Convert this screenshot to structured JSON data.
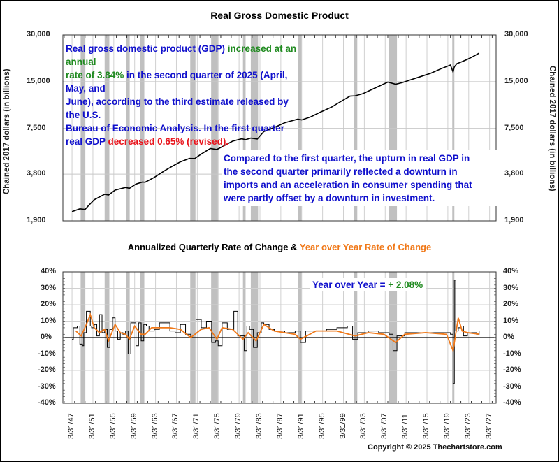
{
  "chart_data": [
    {
      "type": "line",
      "title": "Real Gross Domestic Product",
      "ylabel": "Chained 2017 dollars (in billions)",
      "yscale": "log",
      "ylim": [
        1900,
        30000
      ],
      "yticks": [
        "30,000",
        "15,000",
        "7,500",
        "3,800",
        "1,900"
      ],
      "ytick_values": [
        30000,
        15000,
        7500,
        3800,
        1900
      ],
      "grid": true,
      "series": [
        {
          "name": "Real GDP",
          "color": "#000000",
          "x": [
            1947.25,
            1948.75,
            1949.75,
            1950.5,
            1951.5,
            1953.5,
            1954.25,
            1955.5,
            1957.5,
            1958.25,
            1959.5,
            1960.75,
            1961.25,
            1963,
            1965,
            1966.5,
            1968,
            1969.75,
            1970.75,
            1972,
            1973.75,
            1975,
            1976.5,
            1978,
            1979.75,
            1980.5,
            1981.5,
            1982.75,
            1984,
            1986,
            1988,
            1990.5,
            1991.25,
            1993,
            1995,
            1997,
            1999,
            2000.5,
            2001.5,
            2003,
            2005,
            2007.75,
            2009.25,
            2010.5,
            2012,
            2014,
            2016,
            2018,
            2019.75,
            2020.25,
            2020.5,
            2021,
            2022,
            2023,
            2024,
            2025.25
          ],
          "values": [
            2180,
            2270,
            2250,
            2400,
            2600,
            2820,
            2790,
            3000,
            3120,
            3080,
            3280,
            3380,
            3370,
            3620,
            4000,
            4280,
            4560,
            4800,
            4790,
            5120,
            5560,
            5480,
            5820,
            6200,
            6420,
            6340,
            6490,
            6400,
            7150,
            7600,
            8150,
            8600,
            8500,
            8900,
            9600,
            10300,
            11300,
            12100,
            12150,
            12550,
            13500,
            14900,
            14430,
            14780,
            15360,
            16150,
            17000,
            18200,
            19200,
            17300,
            18700,
            19600,
            20200,
            20900,
            21700,
            22900
          ]
        }
      ],
      "recessions": [
        [
          1948.9,
          1949.8
        ],
        [
          1953.5,
          1954.4
        ],
        [
          1957.6,
          1958.3
        ],
        [
          1960.3,
          1961.1
        ],
        [
          1969.9,
          1970.9
        ],
        [
          1973.9,
          1975.2
        ],
        [
          1980.0,
          1980.5
        ],
        [
          1981.5,
          1982.9
        ],
        [
          1990.5,
          1991.2
        ],
        [
          2001.2,
          2001.9
        ],
        [
          2007.9,
          2009.5
        ],
        [
          2020.1,
          2020.4
        ]
      ],
      "annotations": [
        {
          "parts": [
            {
              "text": "Real gross domestic product (GDP) ",
              "color": "#1010cc"
            },
            {
              "text": "increased at an annual rate of 3.84%",
              "color": "#1f8a1f"
            },
            {
              "text": " in the second quarter of 2025 (April, May, and June), according to the third estimate released by the U.S. Bureau of Economic Analysis. In the first quarter real GDP ",
              "color": "#1010cc"
            },
            {
              "text": "decreased 0.65% (revised).",
              "color": "#e8141c"
            }
          ]
        },
        {
          "parts": [
            {
              "text": "Compared to the first quarter, the upturn in real GDP in the second quarter primarily reflected a downturn in imports and an acceleration in consumer spending that were partly offset by a downturn in investment.",
              "color": "#1010cc"
            }
          ]
        }
      ]
    },
    {
      "type": "line",
      "title_parts": [
        {
          "text": "Annualized Quarterly Rate of Change & ",
          "color": "#000000"
        },
        {
          "text": "Year over Year Rate of Change",
          "color": "#f07818"
        }
      ],
      "ylim": [
        -40,
        40
      ],
      "yticks": [
        "40%",
        "30%",
        "20%",
        "10%",
        "0%",
        "-10%",
        "-20%",
        "-30%",
        "-40%"
      ],
      "ytick_values": [
        40,
        30,
        20,
        10,
        0,
        -10,
        -20,
        -30,
        -40
      ],
      "xticks": [
        "3/31/47",
        "3/31/51",
        "3/31/55",
        "3/31/59",
        "3/31/63",
        "3/31/67",
        "3/31/71",
        "3/31/75",
        "3/31/79",
        "3/31/83",
        "3/31/87",
        "3/31/91",
        "3/31/95",
        "3/31/99",
        "3/31/03",
        "3/31/07",
        "3/31/11",
        "3/31/15",
        "3/31/19",
        "3/31/23",
        "3/31/27"
      ],
      "xlim": [
        1945.5,
        2028.5
      ],
      "grid": true,
      "series": [
        {
          "name": "Annualized Quarterly Rate of Change",
          "color": "#000000",
          "x": [
            1947.25,
            1947.5,
            1947.75,
            1948.25,
            1948.75,
            1949.25,
            1949.5,
            1950.0,
            1950.5,
            1950.75,
            1951.0,
            1951.5,
            1952.0,
            1952.5,
            1953.0,
            1953.5,
            1954.0,
            1954.5,
            1955.0,
            1955.5,
            1956.0,
            1956.5,
            1957.0,
            1957.5,
            1958.0,
            1958.5,
            1959.0,
            1959.5,
            1960.0,
            1960.5,
            1961.0,
            1961.5,
            1962.0,
            1963.0,
            1964.0,
            1965.0,
            1966.0,
            1967.0,
            1968.0,
            1969.0,
            1970.0,
            1971.0,
            1972.0,
            1973.0,
            1974.0,
            1974.75,
            1975.25,
            1976.0,
            1977.0,
            1978.25,
            1979.0,
            1980.25,
            1980.75,
            1981.25,
            1982.0,
            1982.75,
            1983.5,
            1984.0,
            1985.0,
            1986.0,
            1988.0,
            1990.0,
            1991.0,
            1992.0,
            1994.0,
            1996.0,
            1998.0,
            2000.0,
            2001.0,
            2002.0,
            2004.0,
            2006.0,
            2008.0,
            2008.75,
            2009.5,
            2011.0,
            2013.0,
            2015.0,
            2017.0,
            2019.0,
            2019.75,
            2020.25,
            2020.5,
            2020.75,
            2021.25,
            2021.75,
            2022.25,
            2023.0,
            2024.0,
            2024.75,
            2025.25
          ],
          "values": [
            -1,
            6,
            6,
            7,
            -4,
            -5,
            3,
            16,
            16,
            7,
            6,
            8,
            1,
            14,
            3,
            5,
            -6,
            5,
            12,
            4,
            -1,
            3,
            2,
            4,
            -10,
            9,
            9,
            -5,
            9,
            -2,
            8,
            7,
            4,
            5,
            9,
            9,
            4,
            3,
            8,
            2,
            0,
            11,
            6,
            10,
            -3,
            -2,
            -5,
            9,
            5,
            16,
            1,
            -8,
            7,
            5,
            -6,
            3,
            9,
            8,
            5,
            4,
            3,
            4,
            -3,
            4,
            4,
            5,
            6,
            7,
            -1,
            3,
            4,
            3,
            2,
            -8,
            1,
            3,
            3,
            3,
            3,
            3,
            2,
            -28,
            35,
            4,
            6,
            7,
            1,
            3,
            3,
            2,
            3.84
          ]
        },
        {
          "name": "Year over Year Rate of Change",
          "color": "#f07818",
          "x": [
            1948.0,
            1949.0,
            1950.0,
            1950.75,
            1951.5,
            1952.5,
            1953.5,
            1954.25,
            1955.5,
            1956.5,
            1957.5,
            1958.25,
            1959.25,
            1960.5,
            1961.25,
            1962.5,
            1964.0,
            1966.0,
            1968.0,
            1970.0,
            1972.0,
            1973.5,
            1975.0,
            1976.0,
            1978.0,
            1980.0,
            1981.0,
            1982.5,
            1984.0,
            1986.0,
            1990.0,
            1991.0,
            1994.0,
            1998.0,
            2001.5,
            2004.0,
            2007.0,
            2009.25,
            2011.0,
            2015.0,
            2019.0,
            2020.25,
            2021.25,
            2022.0,
            2023.0,
            2025.25
          ],
          "values": [
            4,
            1,
            8,
            14,
            6,
            3,
            5,
            -2,
            8,
            3,
            2,
            -1,
            7,
            2,
            2,
            6,
            6,
            6,
            5,
            0,
            5,
            6,
            -1,
            6,
            5,
            -1,
            3,
            -2,
            8,
            4,
            2,
            -1,
            4,
            4,
            1,
            3,
            2,
            -3,
            2,
            3,
            2,
            -8,
            12,
            4,
            3,
            2.08
          ]
        }
      ],
      "recessions": [
        [
          1948.9,
          1949.8
        ],
        [
          1953.5,
          1954.4
        ],
        [
          1957.6,
          1958.3
        ],
        [
          1960.3,
          1961.1
        ],
        [
          1969.9,
          1970.9
        ],
        [
          1973.9,
          1975.2
        ],
        [
          1980.0,
          1980.5
        ],
        [
          1981.5,
          1982.9
        ],
        [
          1990.5,
          1991.2
        ],
        [
          2001.2,
          2001.9
        ],
        [
          2007.9,
          2009.5
        ],
        [
          2020.1,
          2020.4
        ]
      ],
      "annotations": [
        {
          "parts": [
            {
              "text": "Year over Year = ",
              "color": "#1010cc"
            },
            {
              "text": "+ 2.08%",
              "color": "#1f8a1f"
            }
          ]
        }
      ]
    }
  ],
  "top": {
    "title": "Real Gross Domestic Product",
    "ylabel": "Chained 2017 dollars (in billions)",
    "note1": {
      "a": "Real gross domestic product (GDP) ",
      "b": "increased at an annual",
      "c": "rate of 3.84%",
      "d": " in the second quarter of 2025 (April, May, and",
      "e": "June), according to the third estimate released by the U.S.",
      "f": "Bureau of Economic Analysis. In the first quarter",
      "g": "real GDP ",
      "h": "decreased 0.65% (revised)."
    },
    "note2": {
      "l1": "Compared to the first quarter, the upturn in real GDP in",
      "l2": "the second quarter primarily reflected a downturn in",
      "l3": "imports and an acceleration in consumer spending that",
      "l4": "were partly offset by a downturn in investment."
    }
  },
  "bottom": {
    "title_a": "Annualized Quarterly Rate of Change & ",
    "title_b": "Year over Year Rate of Change",
    "yoy_label": "Year over Year = ",
    "yoy_value": "+ 2.08%"
  },
  "copyright": "Copyright © 2025 Thechartstore.com"
}
